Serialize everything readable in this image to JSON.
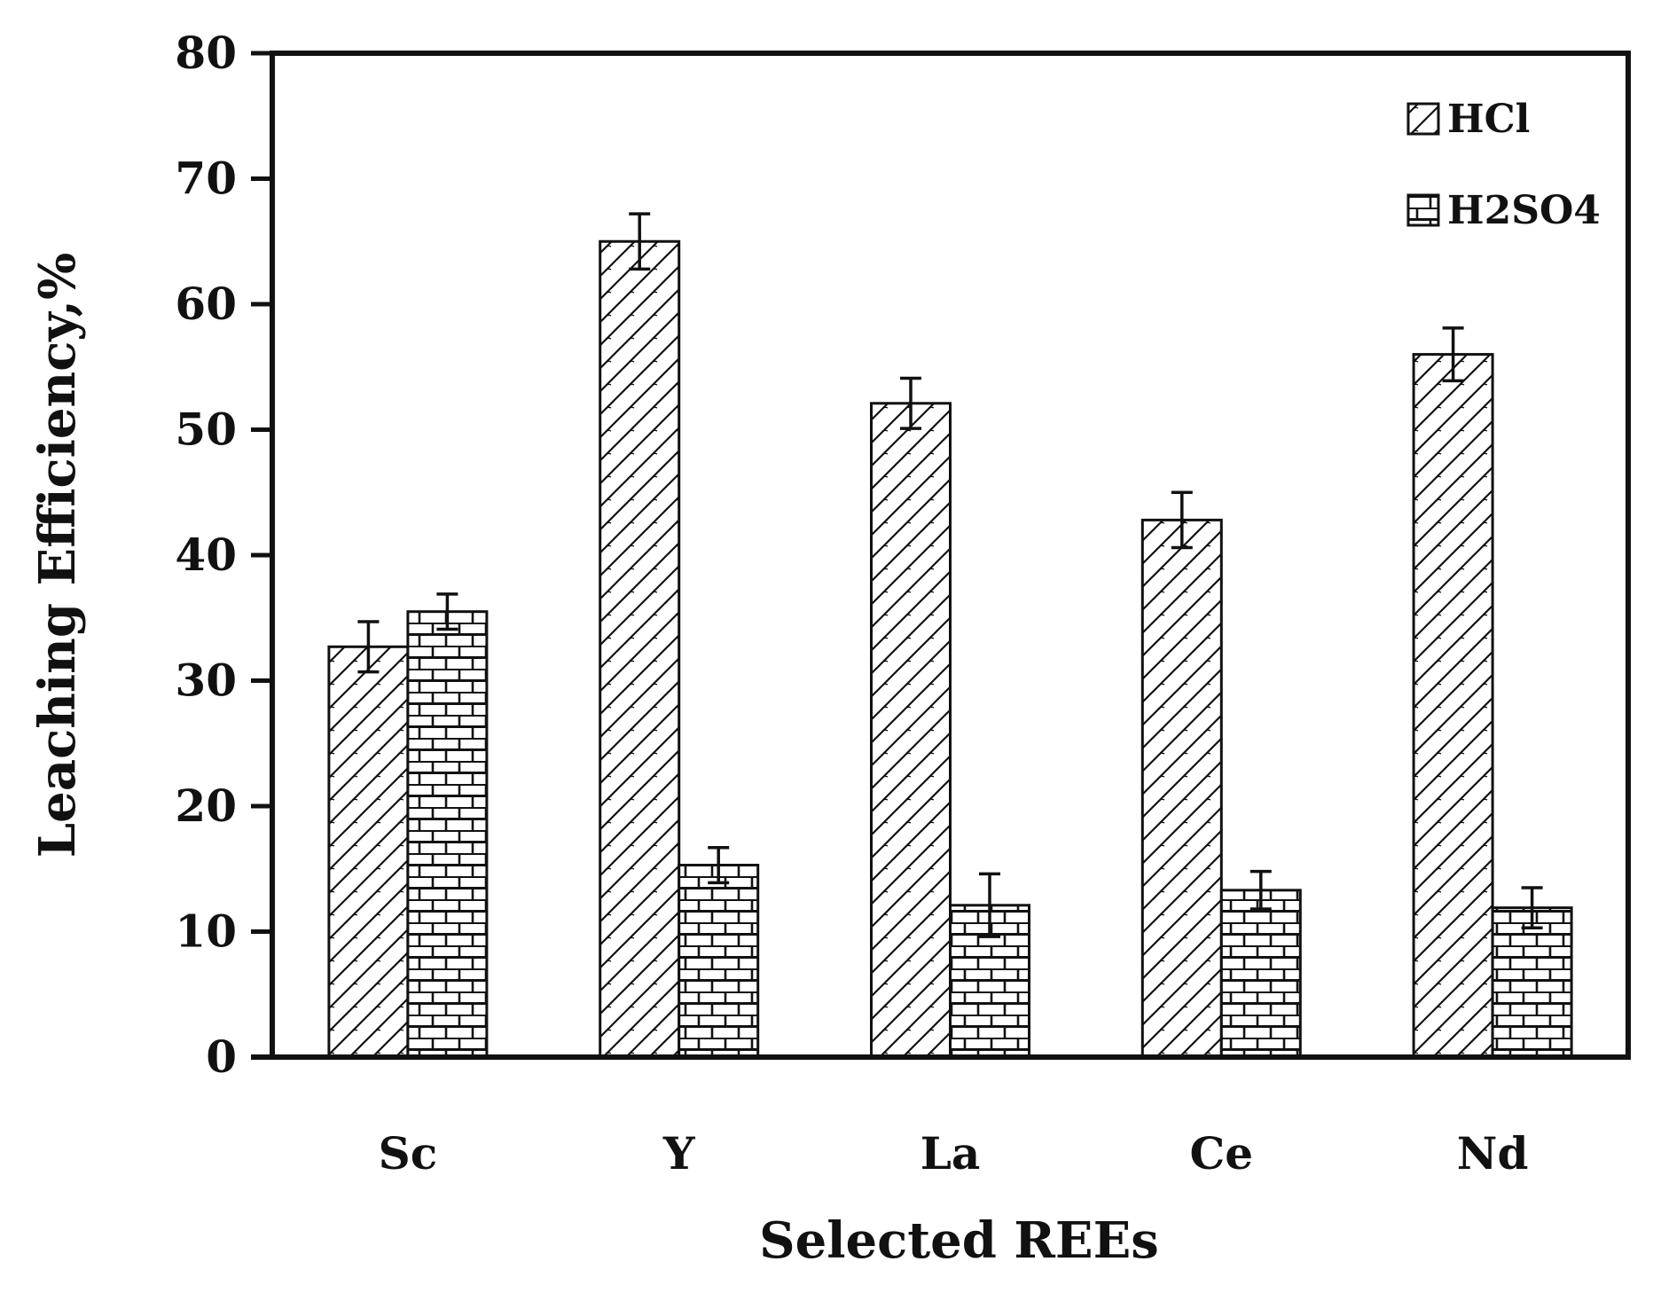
{
  "chart_data": {
    "type": "bar",
    "title": "",
    "xlabel": "Selected REEs",
    "ylabel": "Leaching Efficiency,%",
    "categories": [
      "Sc",
      "Y",
      "La",
      "Ce",
      "Nd"
    ],
    "ylim": [
      0,
      80
    ],
    "yticks": [
      0,
      10,
      20,
      30,
      40,
      50,
      60,
      70,
      80
    ],
    "ytick_labels": [
      "0",
      "10",
      "20",
      "30",
      "40",
      "50",
      "60",
      "70",
      "80"
    ],
    "grid": false,
    "legend_position": "top-right",
    "series": [
      {
        "name": "HCl",
        "pattern": "diagonal-hatch",
        "values": [
          32.7,
          65.0,
          52.1,
          42.8,
          56.0
        ],
        "errors": [
          2.0,
          2.2,
          2.0,
          2.2,
          2.1
        ]
      },
      {
        "name": "H2SO4",
        "pattern": "brick",
        "values": [
          35.5,
          15.3,
          12.1,
          13.3,
          11.9
        ],
        "errors": [
          1.4,
          1.4,
          2.5,
          1.5,
          1.6
        ]
      }
    ]
  },
  "colors": {
    "ink": "#111111",
    "background": "#ffffff"
  }
}
